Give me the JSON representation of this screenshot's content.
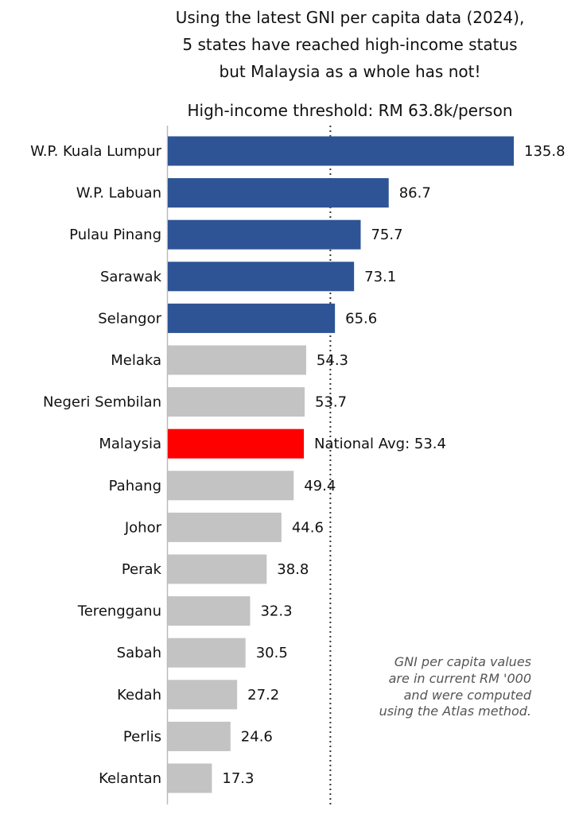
{
  "title_lines": [
    "Using the latest GNI per capita data (2024),",
    "5 states have reached high-income status",
    "but Malaysia as a whole has not!"
  ],
  "threshold_title": "High-income threshold: RM 63.8k/person",
  "note_lines": [
    "GNI per capita values",
    "are in current RM '000",
    "and were computed",
    "using the Atlas method."
  ],
  "colors": {
    "high_income": "#2e5496",
    "below": "#c3c3c3",
    "national": "#ff0000",
    "national_text": "#dd1111",
    "text": "#111111"
  },
  "chart_data": {
    "type": "bar",
    "orientation": "horizontal",
    "title": "Using the latest GNI per capita data (2024), 5 states have reached high-income status but Malaysia as a whole has not!",
    "subtitle": "High-income threshold: RM 63.8k/person",
    "threshold": 63.8,
    "xlim": [
      0,
      140
    ],
    "grid": false,
    "categories": [
      "W.P. Kuala Lumpur",
      "W.P. Labuan",
      "Pulau Pinang",
      "Sarawak",
      "Selangor",
      "Melaka",
      "Negeri Sembilan",
      "Malaysia",
      "Pahang",
      "Johor",
      "Perak",
      "Terengganu",
      "Sabah",
      "Kedah",
      "Perlis",
      "Kelantan"
    ],
    "values": [
      135.8,
      86.7,
      75.7,
      73.1,
      65.6,
      54.3,
      53.7,
      53.4,
      49.4,
      44.6,
      38.8,
      32.3,
      30.5,
      27.2,
      24.6,
      17.3
    ],
    "value_labels": [
      "135.8",
      "86.7",
      "75.7",
      "73.1",
      "65.6",
      "54.3",
      "53.7",
      "National Avg: 53.4",
      "49.4",
      "44.6",
      "38.8",
      "32.3",
      "30.5",
      "27.2",
      "24.6",
      "17.3"
    ],
    "groups": [
      "high",
      "high",
      "high",
      "high",
      "high",
      "below",
      "below",
      "national",
      "below",
      "below",
      "below",
      "below",
      "below",
      "below",
      "below",
      "below"
    ]
  }
}
